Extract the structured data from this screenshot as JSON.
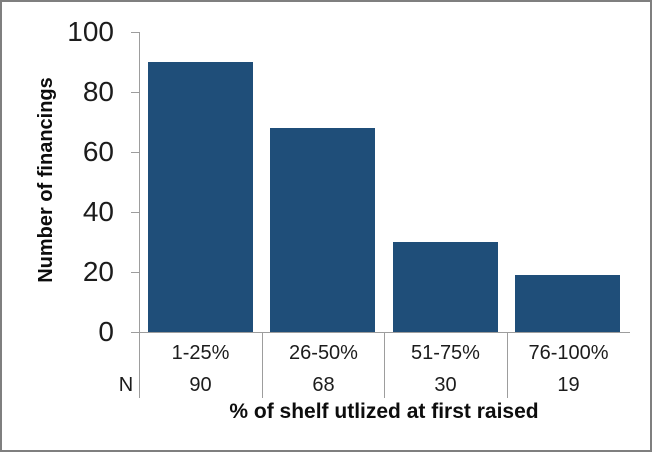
{
  "chart_data": {
    "type": "bar",
    "title": "",
    "categories": [
      "1-25%",
      "26-50%",
      "51-75%",
      "76-100%"
    ],
    "values": [
      90,
      68,
      30,
      19
    ],
    "n_row_label": "N",
    "n_row_values": [
      "90",
      "68",
      "30",
      "19"
    ],
    "xlabel": "% of shelf utlized at first raised",
    "ylabel": "Number of financings",
    "ylim": [
      0,
      100
    ],
    "yticks": [
      0,
      20,
      40,
      60,
      80,
      100
    ],
    "grid": false,
    "legend": "none",
    "bar_color": "#1F4E79",
    "axis_color": "#9d9d9d",
    "text_color": "#1c1c1c",
    "frame_border_color": "#7f7f7f"
  }
}
